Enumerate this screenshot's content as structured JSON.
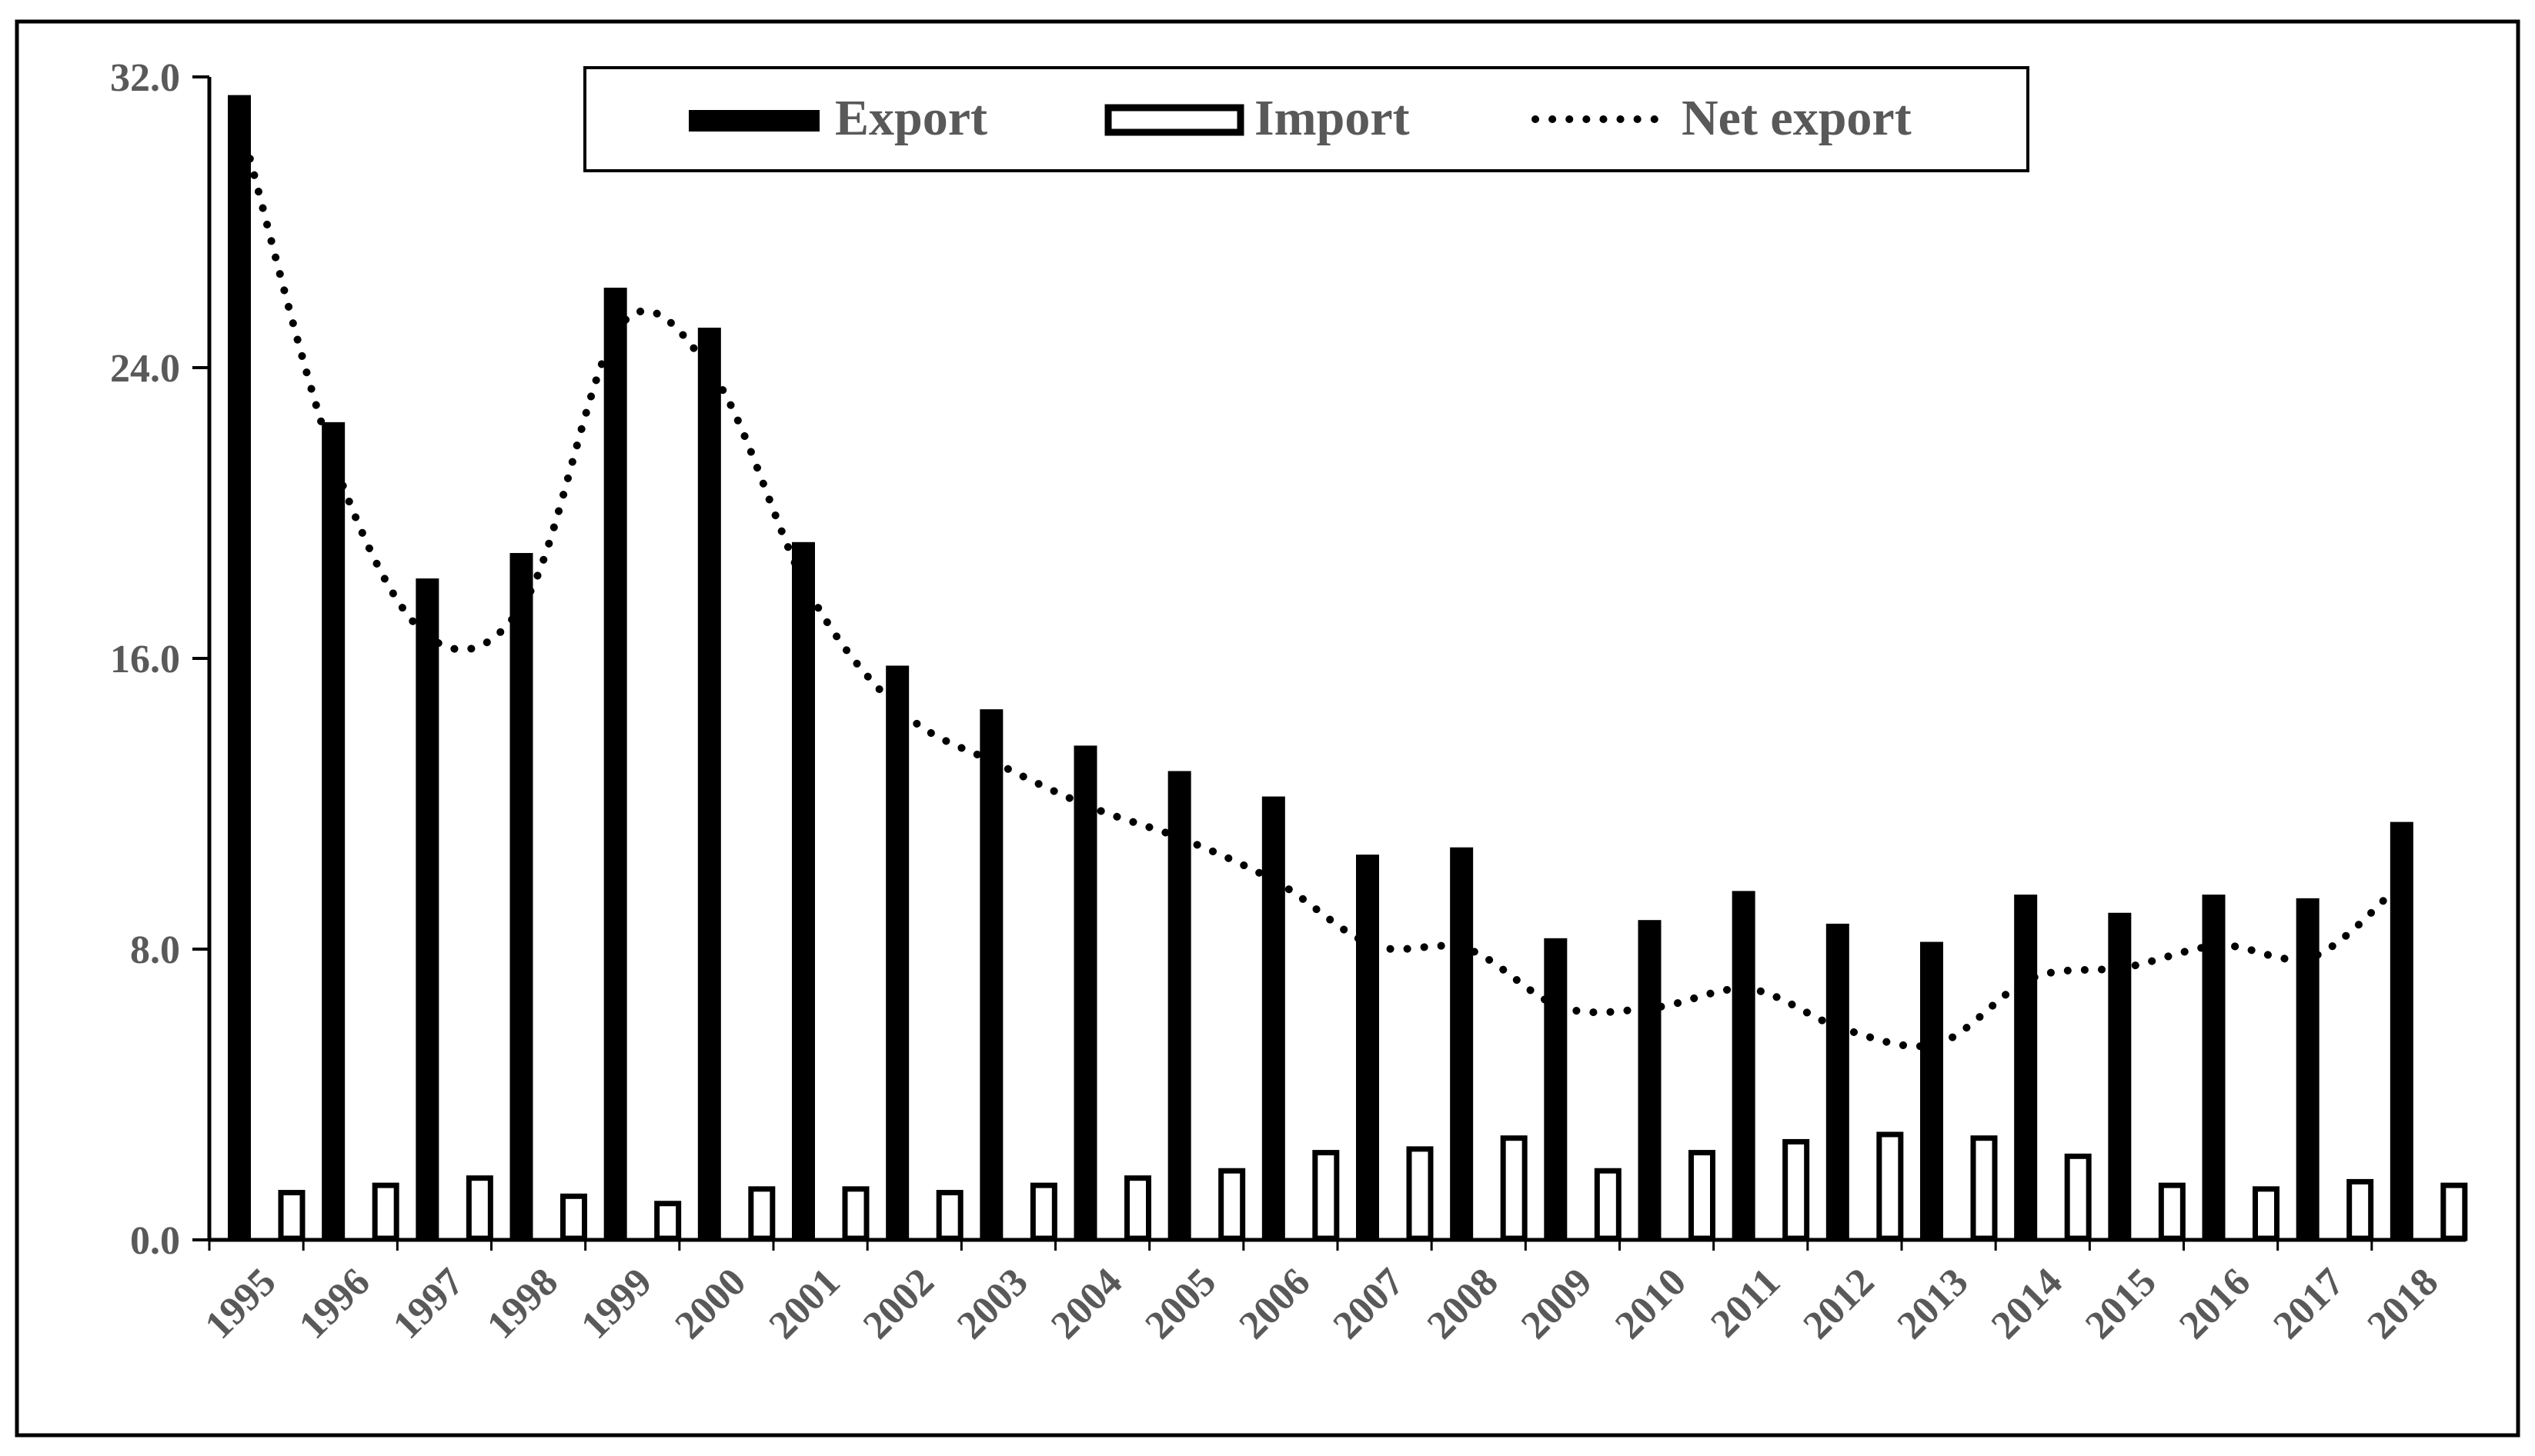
{
  "chart_data": {
    "type": "bar",
    "categories": [
      "1995",
      "1996",
      "1997",
      "1998",
      "1999",
      "2000",
      "2001",
      "2002",
      "2003",
      "2004",
      "2005",
      "2006",
      "2007",
      "2008",
      "2009",
      "2010",
      "2011",
      "2012",
      "2013",
      "2014",
      "2015",
      "2016",
      "2017",
      "2018"
    ],
    "series": [
      {
        "name": "Export",
        "kind": "bar",
        "style": "solid-black",
        "values": [
          31.5,
          22.5,
          18.2,
          18.9,
          26.2,
          25.1,
          19.2,
          15.8,
          14.6,
          13.6,
          12.9,
          12.2,
          10.6,
          10.8,
          8.3,
          8.8,
          9.6,
          8.7,
          8.2,
          9.5,
          9.0,
          9.5,
          9.4,
          11.5
        ]
      },
      {
        "name": "Import",
        "kind": "bar",
        "style": "hollow",
        "values": [
          1.3,
          1.5,
          1.7,
          1.2,
          1.0,
          1.4,
          1.4,
          1.3,
          1.5,
          1.7,
          1.9,
          2.4,
          2.5,
          2.8,
          1.9,
          2.4,
          2.7,
          2.9,
          2.8,
          2.3,
          1.5,
          1.4,
          1.6,
          1.5
        ]
      },
      {
        "name": "Net export",
        "kind": "line",
        "style": "dotted",
        "values": [
          30.2,
          21.0,
          16.5,
          17.7,
          25.2,
          23.7,
          17.8,
          14.5,
          13.1,
          11.9,
          11.0,
          9.8,
          8.1,
          8.0,
          6.4,
          6.4,
          6.9,
          5.8,
          5.4,
          7.2,
          7.5,
          8.1,
          7.8,
          10.0
        ]
      }
    ],
    "y_ticks": [
      "0.0",
      "8.0",
      "16.0",
      "24.0",
      "32.0"
    ],
    "ylim": [
      0,
      32
    ],
    "legend_position": "top-center",
    "grid": false,
    "colors": {
      "export": "#000000",
      "import_fill": "#ffffff",
      "import_stroke": "#000000",
      "net_line": "#000000",
      "text": "#595959"
    }
  }
}
